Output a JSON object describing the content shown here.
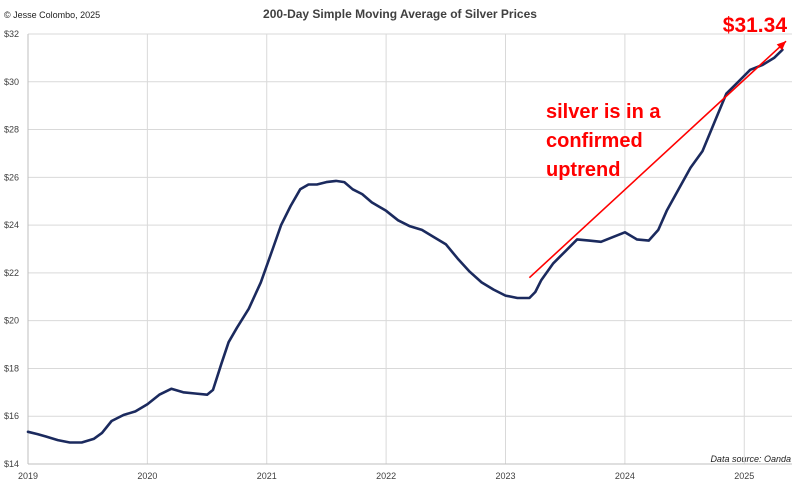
{
  "credit": "© Jesse Colombo, 2025",
  "source": "Data source: Oanda",
  "chart_data": {
    "type": "line",
    "title": "200-Day Simple Moving Average of Silver Prices",
    "xlabel": "",
    "ylabel": "",
    "xlim": [
      2019.0,
      2025.4
    ],
    "ylim": [
      14,
      32
    ],
    "grid": true,
    "x_ticks": [
      "2019",
      "2020",
      "2021",
      "2022",
      "2023",
      "2024",
      "2025"
    ],
    "y_ticks": [
      "$14",
      "$16",
      "$18",
      "$20",
      "$22",
      "$24",
      "$26",
      "$28",
      "$30",
      "$32"
    ],
    "line_color": "#1b2a5e",
    "annotation": {
      "lines": [
        "silver is in a",
        "confirmed",
        "uptrend"
      ],
      "color": "#ff0000",
      "arrow_from": {
        "x": 2023.2,
        "y": 21.8
      },
      "arrow_to": {
        "x": 2025.35,
        "y": 31.7
      }
    },
    "end_label": "$31.34",
    "series": [
      {
        "points": [
          [
            2019.0,
            15.35
          ],
          [
            2019.08,
            15.25
          ],
          [
            2019.15,
            15.15
          ],
          [
            2019.25,
            15.0
          ],
          [
            2019.35,
            14.9
          ],
          [
            2019.45,
            14.9
          ],
          [
            2019.55,
            15.05
          ],
          [
            2019.62,
            15.3
          ],
          [
            2019.7,
            15.8
          ],
          [
            2019.8,
            16.05
          ],
          [
            2019.9,
            16.2
          ],
          [
            2020.0,
            16.5
          ],
          [
            2020.1,
            16.9
          ],
          [
            2020.2,
            17.15
          ],
          [
            2020.3,
            17.0
          ],
          [
            2020.4,
            16.95
          ],
          [
            2020.5,
            16.9
          ],
          [
            2020.55,
            17.1
          ],
          [
            2020.62,
            18.2
          ],
          [
            2020.68,
            19.1
          ],
          [
            2020.75,
            19.7
          ],
          [
            2020.85,
            20.5
          ],
          [
            2020.95,
            21.6
          ],
          [
            2021.05,
            23.0
          ],
          [
            2021.12,
            24.0
          ],
          [
            2021.2,
            24.8
          ],
          [
            2021.28,
            25.5
          ],
          [
            2021.35,
            25.7
          ],
          [
            2021.42,
            25.7
          ],
          [
            2021.5,
            25.8
          ],
          [
            2021.58,
            25.85
          ],
          [
            2021.65,
            25.8
          ],
          [
            2021.72,
            25.5
          ],
          [
            2021.8,
            25.3
          ],
          [
            2021.88,
            24.95
          ],
          [
            2022.0,
            24.6
          ],
          [
            2022.1,
            24.2
          ],
          [
            2022.2,
            23.95
          ],
          [
            2022.3,
            23.8
          ],
          [
            2022.4,
            23.5
          ],
          [
            2022.5,
            23.2
          ],
          [
            2022.6,
            22.6
          ],
          [
            2022.7,
            22.05
          ],
          [
            2022.8,
            21.6
          ],
          [
            2022.9,
            21.3
          ],
          [
            2023.0,
            21.05
          ],
          [
            2023.1,
            20.95
          ],
          [
            2023.2,
            20.95
          ],
          [
            2023.25,
            21.2
          ],
          [
            2023.3,
            21.7
          ],
          [
            2023.4,
            22.4
          ],
          [
            2023.5,
            22.9
          ],
          [
            2023.6,
            23.4
          ],
          [
            2023.7,
            23.35
          ],
          [
            2023.8,
            23.3
          ],
          [
            2023.9,
            23.5
          ],
          [
            2024.0,
            23.7
          ],
          [
            2024.1,
            23.4
          ],
          [
            2024.2,
            23.35
          ],
          [
            2024.28,
            23.8
          ],
          [
            2024.35,
            24.6
          ],
          [
            2024.45,
            25.5
          ],
          [
            2024.55,
            26.4
          ],
          [
            2024.65,
            27.1
          ],
          [
            2024.75,
            28.3
          ],
          [
            2024.85,
            29.5
          ],
          [
            2024.95,
            30.0
          ],
          [
            2025.05,
            30.5
          ],
          [
            2025.15,
            30.7
          ],
          [
            2025.25,
            31.0
          ],
          [
            2025.32,
            31.34
          ]
        ]
      }
    ]
  }
}
